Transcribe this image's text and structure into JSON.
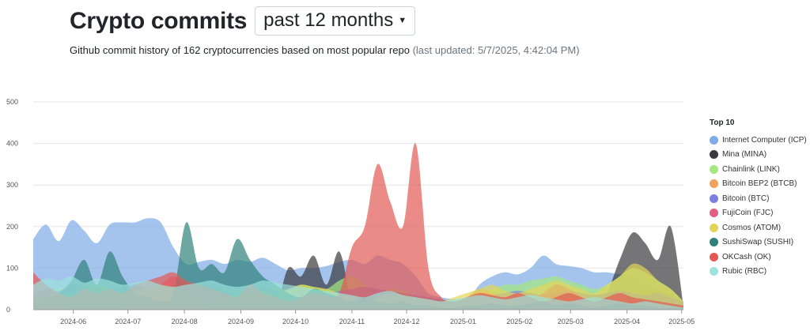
{
  "header": {
    "title": "Crypto commits",
    "period_selected": "past 12 months",
    "subtitle_main": "Github commit history of 162 cryptocurrencies based on most popular repo",
    "subtitle_updated": "(last updated: 5/7/2025, 4:42:04 PM)"
  },
  "legend": {
    "title": "Top 10",
    "items": [
      {
        "label": "Internet Computer (ICP)",
        "color": "#7fabe6"
      },
      {
        "label": "Mina (MINA)",
        "color": "#3a3a3e"
      },
      {
        "label": "Chainlink (LINK)",
        "color": "#a3e87e"
      },
      {
        "label": "Bitcoin BEP2 (BTCB)",
        "color": "#f0a35e"
      },
      {
        "label": "Bitcoin (BTC)",
        "color": "#7d7ee0"
      },
      {
        "label": "FujiCoin (FJC)",
        "color": "#e35f83"
      },
      {
        "label": "Cosmos (ATOM)",
        "color": "#e2d55a"
      },
      {
        "label": "SushiSwap (SUSHI)",
        "color": "#2f827b"
      },
      {
        "label": "OKCash (OK)",
        "color": "#e35a55"
      },
      {
        "label": "Rubic (RBC)",
        "color": "#9be3dc"
      }
    ]
  },
  "chart_data": {
    "type": "area",
    "title": "",
    "xlabel": "",
    "ylabel": "",
    "ylim": [
      0,
      500
    ],
    "yticks": [
      0,
      100,
      200,
      300,
      400,
      500
    ],
    "xticks": [
      "2024-06",
      "2024-07",
      "2024-08",
      "2024-09",
      "2024-10",
      "2024-11",
      "2024-12",
      "2025-01",
      "2025-02",
      "2025-03",
      "2025-04",
      "2025-05"
    ],
    "x": [
      "2024-05-10",
      "2024-05-17",
      "2024-05-24",
      "2024-05-31",
      "2024-06-07",
      "2024-06-14",
      "2024-06-21",
      "2024-06-28",
      "2024-07-05",
      "2024-07-12",
      "2024-07-19",
      "2024-07-26",
      "2024-08-02",
      "2024-08-09",
      "2024-08-16",
      "2024-08-23",
      "2024-08-30",
      "2024-09-06",
      "2024-09-13",
      "2024-09-20",
      "2024-09-27",
      "2024-10-04",
      "2024-10-11",
      "2024-10-18",
      "2024-10-25",
      "2024-11-01",
      "2024-11-08",
      "2024-11-15",
      "2024-11-22",
      "2024-11-29",
      "2024-12-06",
      "2024-12-13",
      "2024-12-20",
      "2024-12-27",
      "2025-01-03",
      "2025-01-10",
      "2025-01-17",
      "2025-01-24",
      "2025-01-31",
      "2025-02-07",
      "2025-02-14",
      "2025-02-21",
      "2025-02-28",
      "2025-03-07",
      "2025-03-14",
      "2025-03-21",
      "2025-03-28",
      "2025-04-04",
      "2025-04-11",
      "2025-04-18",
      "2025-04-25",
      "2025-05-02"
    ],
    "grid": true,
    "legend_position": "right",
    "series": [
      {
        "name": "Internet Computer (ICP)",
        "values": [
          170,
          205,
          165,
          215,
          190,
          160,
          205,
          210,
          210,
          220,
          210,
          150,
          110,
          115,
          120,
          110,
          120,
          115,
          125,
          110,
          95,
          100,
          100,
          105,
          115,
          120,
          110,
          130,
          120,
          110,
          80,
          40,
          30,
          25,
          20,
          60,
          80,
          90,
          85,
          100,
          130,
          110,
          105,
          100,
          90,
          90,
          85,
          80,
          60,
          50,
          40,
          20
        ]
      },
      {
        "name": "Mina (MINA)",
        "values": [
          0,
          0,
          0,
          0,
          0,
          0,
          0,
          0,
          0,
          0,
          0,
          0,
          0,
          0,
          0,
          0,
          0,
          0,
          0,
          0,
          100,
          80,
          130,
          60,
          140,
          20,
          0,
          0,
          0,
          0,
          0,
          0,
          0,
          0,
          0,
          0,
          0,
          0,
          0,
          0,
          0,
          0,
          0,
          0,
          0,
          40,
          120,
          185,
          160,
          120,
          200,
          10
        ]
      },
      {
        "name": "Chainlink (LINK)",
        "values": [
          30,
          40,
          50,
          45,
          60,
          50,
          40,
          45,
          55,
          50,
          40,
          45,
          50,
          55,
          60,
          50,
          45,
          40,
          50,
          55,
          45,
          60,
          55,
          50,
          70,
          80,
          60,
          40,
          50,
          45,
          30,
          20,
          25,
          20,
          30,
          40,
          50,
          60,
          60,
          70,
          75,
          80,
          70,
          60,
          50,
          60,
          80,
          100,
          90,
          70,
          50,
          20
        ]
      },
      {
        "name": "Bitcoin BEP2 (BTCB)",
        "values": [
          0,
          0,
          0,
          0,
          0,
          0,
          0,
          0,
          0,
          0,
          0,
          0,
          0,
          0,
          0,
          0,
          0,
          0,
          0,
          0,
          0,
          0,
          0,
          0,
          0,
          0,
          0,
          0,
          0,
          0,
          0,
          0,
          0,
          0,
          30,
          50,
          40,
          30,
          40,
          20,
          10,
          0,
          0,
          0,
          0,
          0,
          0,
          0,
          0,
          0,
          0,
          0
        ]
      },
      {
        "name": "Bitcoin (BTC)",
        "values": [
          40,
          50,
          45,
          60,
          55,
          50,
          45,
          55,
          60,
          50,
          45,
          40,
          50,
          55,
          60,
          45,
          40,
          50,
          55,
          45,
          40,
          50,
          45,
          40,
          45,
          50,
          55,
          50,
          45,
          40,
          35,
          30,
          25,
          20,
          25,
          30,
          35,
          40,
          45,
          40,
          35,
          40,
          45,
          40,
          35,
          40,
          45,
          40,
          35,
          40,
          30,
          20
        ]
      },
      {
        "name": "FujiCoin (FJC)",
        "values": [
          30,
          20,
          10,
          0,
          0,
          0,
          0,
          0,
          20,
          40,
          60,
          80,
          60,
          40,
          0,
          0,
          0,
          0,
          0,
          0,
          0,
          0,
          0,
          0,
          0,
          0,
          0,
          0,
          0,
          0,
          0,
          0,
          0,
          0,
          0,
          0,
          0,
          0,
          0,
          20,
          40,
          60,
          50,
          30,
          0,
          0,
          0,
          0,
          0,
          0,
          0,
          0
        ]
      },
      {
        "name": "Cosmos (ATOM)",
        "values": [
          20,
          30,
          40,
          35,
          50,
          60,
          50,
          40,
          45,
          50,
          60,
          55,
          40,
          30,
          20,
          30,
          40,
          50,
          45,
          40,
          50,
          60,
          55,
          50,
          40,
          30,
          20,
          30,
          40,
          35,
          30,
          25,
          20,
          30,
          40,
          50,
          60,
          45,
          40,
          50,
          60,
          70,
          60,
          50,
          40,
          60,
          80,
          110,
          100,
          70,
          50,
          20
        ]
      },
      {
        "name": "SushiSwap (SUSHI)",
        "values": [
          20,
          30,
          40,
          70,
          120,
          60,
          140,
          80,
          40,
          30,
          20,
          40,
          210,
          100,
          110,
          90,
          170,
          120,
          80,
          60,
          40,
          30,
          50,
          40,
          30,
          20,
          30,
          20,
          15,
          20,
          10,
          10,
          5,
          5,
          10,
          10,
          15,
          10,
          10,
          15,
          20,
          10,
          15,
          10,
          5,
          10,
          15,
          10,
          10,
          5,
          5,
          5
        ]
      },
      {
        "name": "OKCash (OK)",
        "values": [
          90,
          60,
          40,
          30,
          50,
          40,
          50,
          40,
          60,
          70,
          80,
          90,
          70,
          60,
          50,
          40,
          30,
          60,
          40,
          30,
          20,
          30,
          40,
          35,
          40,
          150,
          200,
          350,
          260,
          200,
          400,
          100,
          30,
          20,
          30,
          40,
          35,
          30,
          40,
          30,
          20,
          30,
          40,
          30,
          20,
          30,
          40,
          30,
          25,
          20,
          15,
          10
        ]
      },
      {
        "name": "Rubic (RBC)",
        "values": [
          60,
          75,
          70,
          80,
          65,
          75,
          70,
          60,
          65,
          70,
          60,
          55,
          60,
          65,
          70,
          60,
          55,
          60,
          70,
          65,
          60,
          55,
          50,
          45,
          40,
          35,
          30,
          40,
          45,
          35,
          30,
          25,
          20,
          25,
          30,
          35,
          30,
          25,
          30,
          35,
          30,
          25,
          20,
          25,
          30,
          25,
          20,
          15,
          20,
          15,
          10,
          5
        ]
      }
    ]
  }
}
